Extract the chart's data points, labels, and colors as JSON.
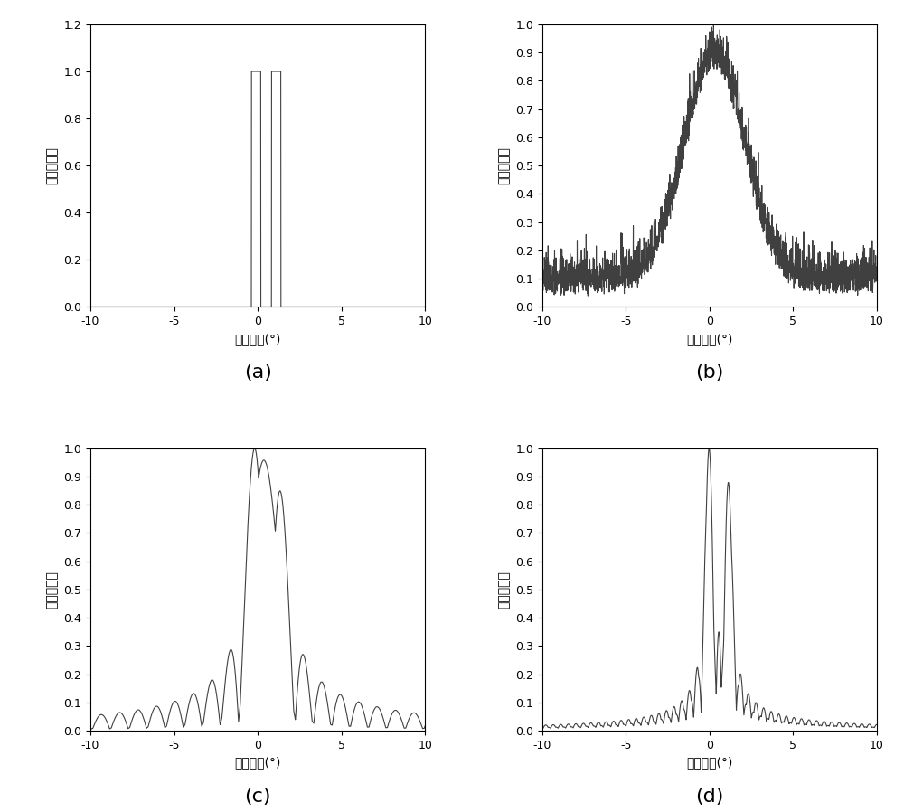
{
  "fig_width": 10.0,
  "fig_height": 8.98,
  "dpi": 100,
  "background_color": "#ffffff",
  "line_color": "#404040",
  "line_width": 0.8,
  "xlabel": "方位角度(°)",
  "ylabel": "归一化幅度",
  "xlim": [
    -10,
    10
  ],
  "xticks": [
    -10,
    -5,
    0,
    5,
    10
  ],
  "subplot_labels": [
    "(a)",
    "(b)",
    "(c)",
    "(d)"
  ],
  "subplot_label_fontsize": 16,
  "axis_fontsize": 10,
  "tick_fontsize": 9,
  "ylabel_fontsize": 10
}
